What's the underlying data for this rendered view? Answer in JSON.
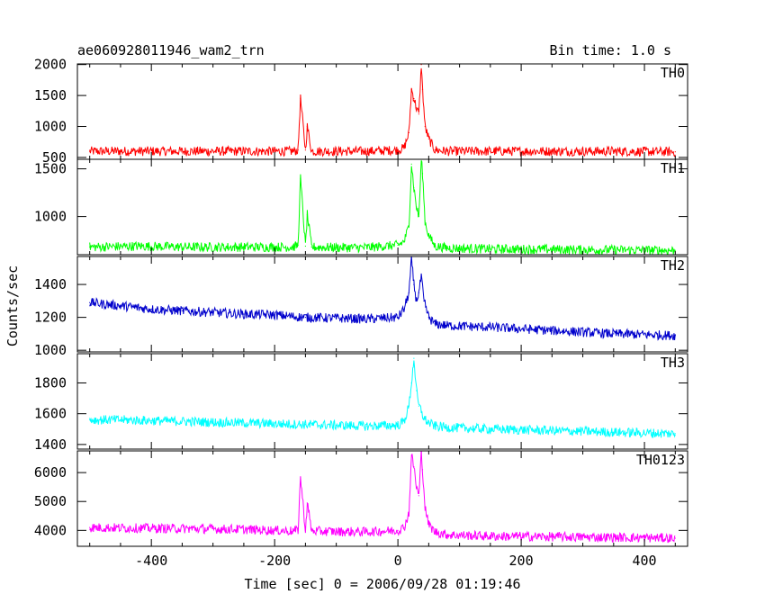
{
  "chart_data": {
    "type": "line",
    "title": "ae060928011946_wam2_trn",
    "bin_time_label": "Bin time: 1.0 s",
    "xlabel": "Time [sec] 0 = 2006/09/28 01:19:46",
    "ylabel": "Counts/sec",
    "xlim": [
      -520,
      470
    ],
    "xticks": [
      -400,
      -200,
      0,
      200,
      400
    ],
    "grid": false,
    "panels": [
      {
        "name": "TH0",
        "color": "#ff0000",
        "ylim": [
          470,
          2010
        ],
        "yticks": [
          500,
          1000,
          1500,
          2000
        ],
        "x": [
          -500,
          -420,
          -340,
          -260,
          -200,
          -170,
          -162,
          -158,
          -150,
          -147,
          -140,
          -100,
          -50,
          0,
          10,
          18,
          22,
          26,
          30,
          34,
          38,
          40,
          44,
          50,
          60,
          80,
          150,
          250,
          350,
          450
        ],
        "y": [
          600,
          600,
          600,
          600,
          600,
          600,
          620,
          1450,
          620,
          1000,
          600,
          600,
          600,
          620,
          650,
          900,
          1600,
          1450,
          1300,
          1200,
          2000,
          1600,
          1000,
          800,
          620,
          600,
          600,
          600,
          600,
          590
        ]
      },
      {
        "name": "TH1",
        "color": "#00ff00",
        "ylim": [
          600,
          1600
        ],
        "yticks": [
          1000,
          1500
        ],
        "x": [
          -500,
          -420,
          -340,
          -260,
          -200,
          -170,
          -162,
          -158,
          -150,
          -147,
          -140,
          -100,
          -50,
          0,
          10,
          18,
          22,
          26,
          30,
          34,
          38,
          40,
          44,
          50,
          60,
          80,
          150,
          250,
          350,
          450
        ],
        "y": [
          680,
          690,
          680,
          680,
          680,
          680,
          700,
          1400,
          690,
          1020,
          680,
          675,
          675,
          700,
          740,
          900,
          1550,
          1300,
          1100,
          1000,
          1600,
          1450,
          950,
          800,
          690,
          670,
          660,
          655,
          650,
          645
        ]
      },
      {
        "name": "TH2",
        "color": "#0000cc",
        "ylim": [
          990,
          1570
        ],
        "yticks": [
          1000,
          1200,
          1400
        ],
        "x": [
          -500,
          -450,
          -400,
          -350,
          -300,
          -250,
          -200,
          -170,
          -150,
          -100,
          -50,
          0,
          10,
          18,
          22,
          26,
          30,
          34,
          38,
          42,
          50,
          60,
          80,
          150,
          250,
          350,
          450
        ],
        "y": [
          1290,
          1270,
          1250,
          1240,
          1230,
          1220,
          1215,
          1205,
          1200,
          1195,
          1190,
          1200,
          1250,
          1350,
          1550,
          1400,
          1300,
          1350,
          1450,
          1300,
          1200,
          1160,
          1150,
          1140,
          1120,
          1100,
          1090
        ]
      },
      {
        "name": "TH3",
        "color": "#00ffff",
        "ylim": [
          1370,
          1990
        ],
        "yticks": [
          1400,
          1600,
          1800
        ],
        "x": [
          -500,
          -450,
          -400,
          -350,
          -300,
          -250,
          -200,
          -150,
          -100,
          -50,
          0,
          10,
          18,
          22,
          26,
          30,
          34,
          38,
          42,
          50,
          60,
          80,
          150,
          250,
          350,
          450
        ],
        "y": [
          1560,
          1560,
          1555,
          1550,
          1545,
          1540,
          1535,
          1530,
          1525,
          1520,
          1525,
          1550,
          1650,
          1800,
          1960,
          1750,
          1650,
          1620,
          1570,
          1540,
          1520,
          1510,
          1500,
          1490,
          1480,
          1470
        ]
      },
      {
        "name": "TH0123",
        "color": "#ff00ff",
        "ylim": [
          3450,
          6750
        ],
        "yticks": [
          4000,
          5000,
          6000
        ],
        "x": [
          -500,
          -420,
          -340,
          -260,
          -200,
          -170,
          -162,
          -158,
          -150,
          -147,
          -140,
          -100,
          -50,
          0,
          10,
          18,
          22,
          26,
          30,
          34,
          38,
          40,
          44,
          50,
          60,
          80,
          150,
          250,
          350,
          450
        ],
        "y": [
          4100,
          4080,
          4060,
          4040,
          4000,
          3980,
          4000,
          5850,
          4000,
          4950,
          3980,
          3960,
          3950,
          4000,
          4100,
          4600,
          6600,
          6200,
          5500,
          5200,
          6700,
          6100,
          4800,
          4200,
          3950,
          3850,
          3800,
          3780,
          3760,
          3730
        ]
      }
    ]
  }
}
